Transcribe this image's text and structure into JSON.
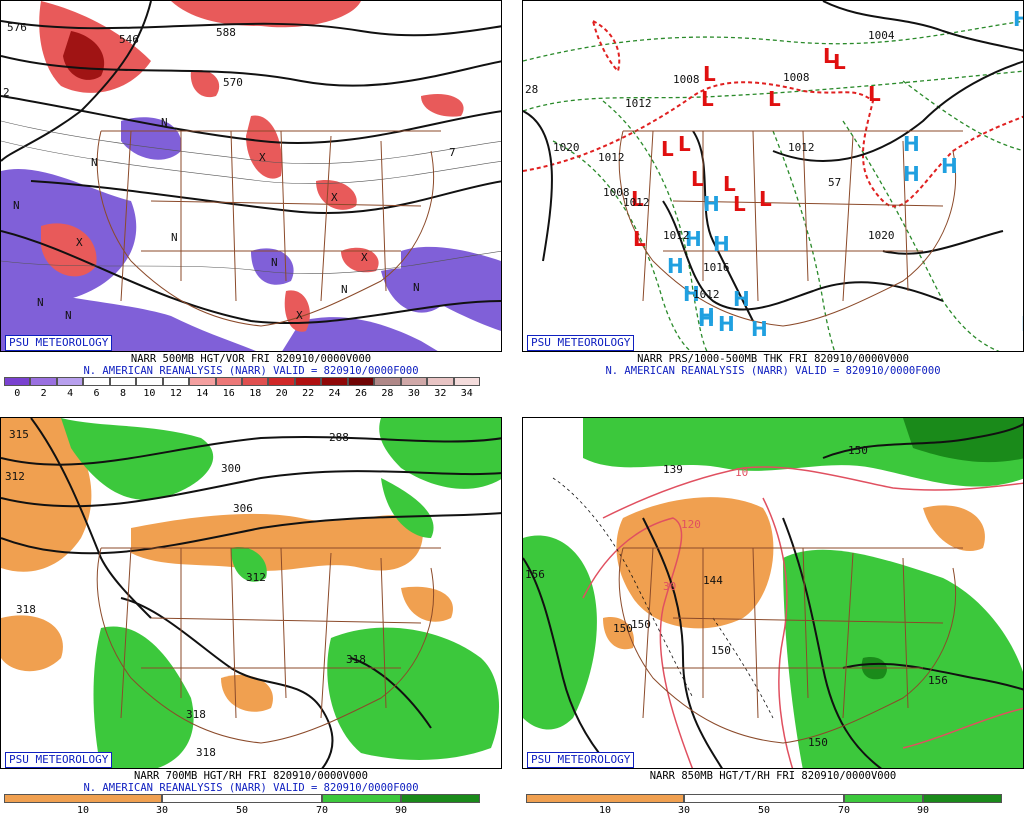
{
  "panels": [
    {
      "id": "tl",
      "brand": "PSU METEOROLOGY",
      "caption1": "NARR 500MB HGT/VOR FRI 820910/0000V000",
      "caption2": "N. AMERICAN REANALYSIS (NARR) VALID = 820910/0000F000",
      "scale_ticks": [
        "0",
        "2",
        "4",
        "6",
        "8",
        "10",
        "12",
        "14",
        "16",
        "18",
        "20",
        "22",
        "24",
        "26",
        "28",
        "30",
        "32",
        "34"
      ],
      "scale_colors": [
        "#7a42d0",
        "#9a70e0",
        "#b8a0ee",
        "#ffffff",
        "#ffffff",
        "#ffffff",
        "#ffffff",
        "#f4a0a0",
        "#ec7878",
        "#e05050",
        "#d02828",
        "#b01010",
        "#900808",
        "#700404",
        "#b08888",
        "#d0a8a8",
        "#e8c4c4",
        "#f4dcdc"
      ],
      "labels": [
        "576",
        "546",
        "588",
        "570",
        "2",
        "7",
        "N",
        "X",
        "N",
        "N",
        "X",
        "N",
        "N",
        "N",
        "N",
        "X",
        "N",
        "X",
        "X",
        "N"
      ]
    },
    {
      "id": "tr",
      "brand": "PSU METEOROLOGY",
      "caption1": "NARR PRS/1000-500MB THK FRI 820910/0000V000",
      "caption2": "N. AMERICAN REANALYSIS (NARR) VALID = 820910/0000F000",
      "labels": [
        "1004",
        "1008",
        "1008",
        "1012",
        "1012",
        "1020",
        "1020",
        "1012",
        "1008",
        "1012",
        "1012",
        "1016",
        "1012",
        "28",
        "57"
      ],
      "lows": 14,
      "highs": 16
    },
    {
      "id": "bl",
      "brand": "PSU METEOROLOGY",
      "caption1": "NARR 700MB HGT/RH FRI 820910/0000V000",
      "caption2": "N. AMERICAN REANALYSIS (NARR) VALID = 820910/0000F000",
      "scale_ticks": [
        "10",
        "30",
        "50",
        "70",
        "90"
      ],
      "labels": [
        "312",
        "288",
        "300",
        "306",
        "312",
        "318",
        "318",
        "318",
        "318",
        "315"
      ]
    },
    {
      "id": "br",
      "brand": "PSU METEOROLOGY",
      "caption1": "NARR 850MB HGT/T/RH FRI 820910/0000V000",
      "caption2": "",
      "scale_ticks": [
        "10",
        "30",
        "50",
        "70",
        "90"
      ],
      "labels": [
        "156",
        "150",
        "144",
        "150",
        "150",
        "150",
        "156",
        "150",
        "120",
        "10",
        "30",
        "139"
      ]
    }
  ],
  "colors": {
    "border": "#000000",
    "brand_blue": "#1020c0",
    "vort_purple": "#8060d8",
    "vort_red": "#e85a5a",
    "vort_dark": "#a01414",
    "low_red": "#e01010",
    "high_cyan": "#20a0e0",
    "rh_green": "#3cc83c",
    "rh_dark_green": "#1a8a1a",
    "dry_orange": "#f0a050",
    "dry_dark": "#e47830",
    "state_brown": "#8b4a2a",
    "temp_pink": "#e05060",
    "isobar_green": "#2a8a2a",
    "thick_red": "#e02020"
  }
}
